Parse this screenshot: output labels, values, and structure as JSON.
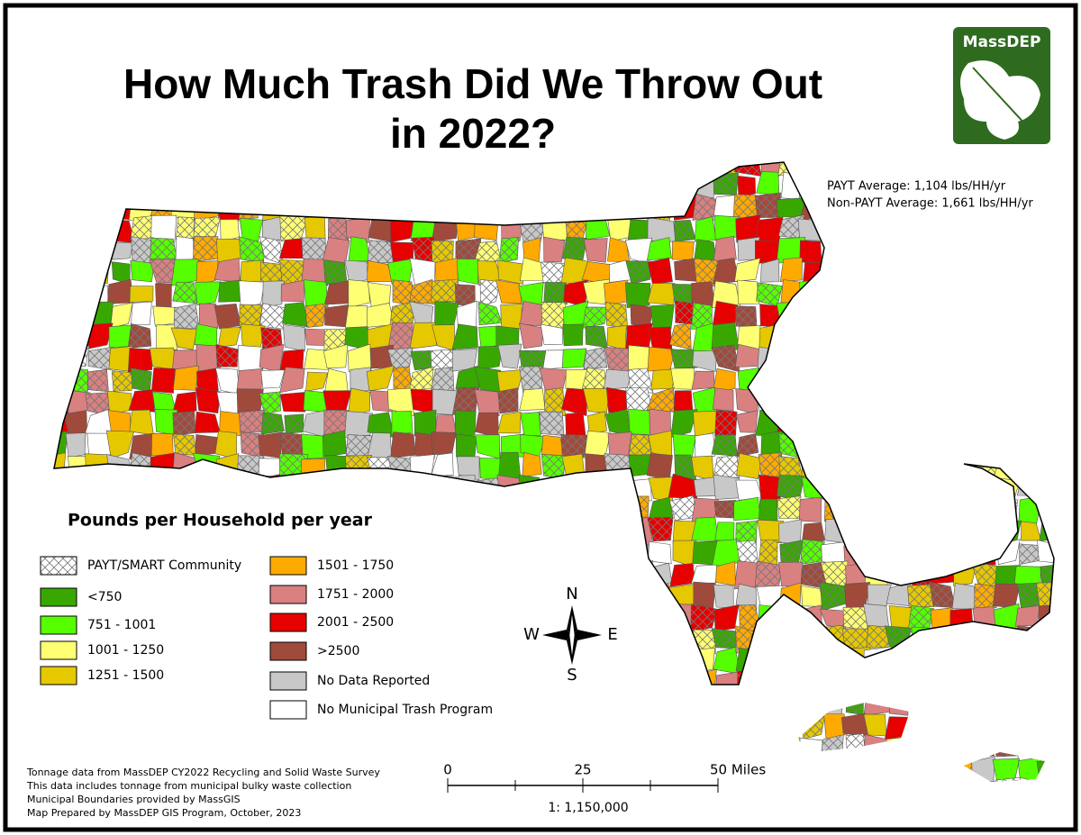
{
  "title_lines": [
    "How Much Trash Did We Throw Out",
    "in 2022?"
  ],
  "logo": "MassDEP",
  "averages": [
    "PAYT Average: 1,104 lbs/HH/yr",
    "Non-PAYT Average: 1,661 lbs/HH/yr"
  ],
  "legend": {
    "title": "Pounds per Household per year",
    "items": [
      {
        "label": "PAYT/SMART Community",
        "pattern": "crosshatch"
      },
      {
        "label": "<750",
        "color": "#38a800"
      },
      {
        "label": "751 - 1001",
        "color": "#55ff00"
      },
      {
        "label": "1001 - 1250",
        "color": "#ffff73"
      },
      {
        "label": "1251 - 1500",
        "color": "#e6c800"
      },
      {
        "label": "1501 - 1750",
        "color": "#ffaa00"
      },
      {
        "label": "1751 - 2000",
        "color": "#d98080"
      },
      {
        "label": "2001 - 2500",
        "color": "#e60000"
      },
      {
        "label": ">2500",
        "color": "#a04a3c"
      },
      {
        "label": "No Data Reported",
        "color": "#c8c8c8"
      },
      {
        "label": "No Municipal Trash Program",
        "color": "#ffffff"
      }
    ]
  },
  "compass": {
    "n": "N",
    "s": "S",
    "e": "E",
    "w": "W"
  },
  "scale": {
    "labels": [
      "0",
      "25",
      "50 Miles"
    ],
    "ratio": "1: 1,150,000"
  },
  "notes": [
    "Tonnage data from MassDEP CY2022 Recycling and Solid Waste Survey",
    "This data includes tonnage from municipal bulky waste collection",
    "Municipal Boundaries provided by MassGIS",
    "Map Prepared by MassDEP GIS Program, October, 2023"
  ]
}
